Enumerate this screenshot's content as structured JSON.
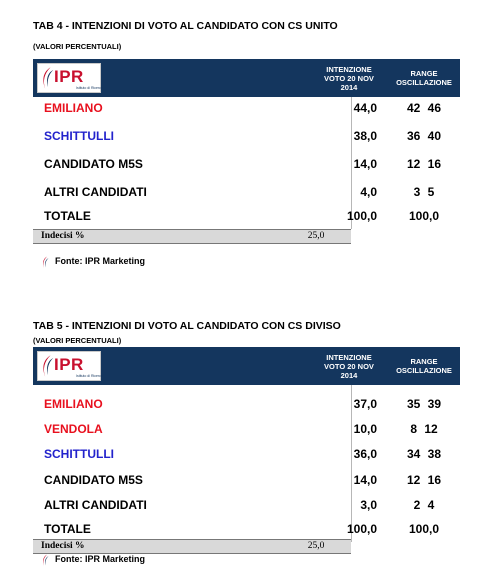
{
  "tables": [
    {
      "title": "TAB 4 - INTENZIONI DI VOTO AL CANDIDATO CON CS UNITO",
      "subtitle": "(VALORI PERCENTUALI)",
      "logo_text": "IPR",
      "logo_subtext": "Istituto di Ricerca",
      "header_intenzione": "INTENZIONE\nVOTO  20 NOV\n2014",
      "header_range": "RANGE\nOSCILLAZIONE",
      "rows": [
        {
          "label": "EMILIANO",
          "value": "44,0",
          "range": "42 46",
          "color": "red"
        },
        {
          "label": "SCHITTULLI",
          "value": "38,0",
          "range": "36 40",
          "color": "blue"
        },
        {
          "label": "CANDIDATO M5S",
          "value": "14,0",
          "range": "12 16",
          "color": "black"
        },
        {
          "label": "ALTRI CANDIDATI",
          "value": "4,0",
          "range": "3 5",
          "color": "black"
        },
        {
          "label": "TOTALE",
          "value": "100,0",
          "range": "100,0",
          "color": "black"
        }
      ],
      "undecided_label": "Indecisi %",
      "undecided_value": "25,0",
      "source": "Fonte: IPR Marketing"
    },
    {
      "title": "TAB 5 - INTENZIONI DI VOTO AL CANDIDATO CON CS DIVISO",
      "subtitle": "(VALORI PERCENTUALI)",
      "logo_text": "IPR",
      "logo_subtext": "Istituto di Ricerca",
      "header_intenzione": "INTENZIONE\nVOTO  20 NOV\n2014",
      "header_range": "RANGE\nOSCILLAZIONE",
      "rows": [
        {
          "label": "EMILIANO",
          "value": "37,0",
          "range": "35 39",
          "color": "red"
        },
        {
          "label": "VENDOLA",
          "value": "10,0",
          "range": "8 12",
          "color": "red"
        },
        {
          "label": "SCHITTULLI",
          "value": "36,0",
          "range": "34 38",
          "color": "blue"
        },
        {
          "label": "CANDIDATO M5S",
          "value": "14,0",
          "range": "12 16",
          "color": "black"
        },
        {
          "label": "ALTRI CANDIDATI",
          "value": "3,0",
          "range": "2 4",
          "color": "black"
        },
        {
          "label": "TOTALE",
          "value": "100,0",
          "range": "100,0",
          "color": "black"
        }
      ],
      "undecided_label": "Indecisi %",
      "undecided_value": "25,0",
      "source": "Fonte: IPR Marketing"
    }
  ],
  "colors": {
    "header": "#14365e",
    "red": "#e8101e",
    "blue": "#2222cc",
    "undecided_bg": "#d9d9d9"
  },
  "icons": {
    "logo_swoosh": "ipr-swoosh-icon"
  }
}
